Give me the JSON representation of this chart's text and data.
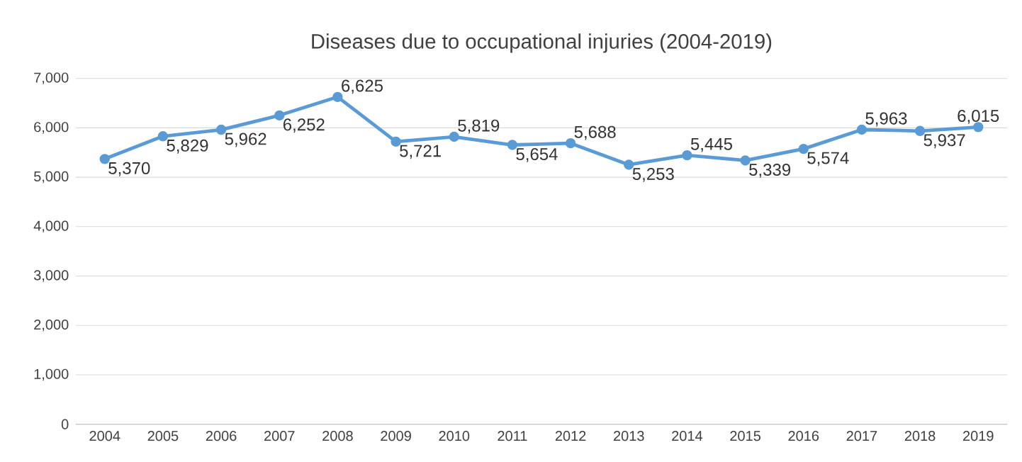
{
  "chart_data": {
    "type": "line",
    "title": "Diseases due to occupational injuries (2004-2019)",
    "categories": [
      "2004",
      "2005",
      "2006",
      "2007",
      "2008",
      "2009",
      "2010",
      "2011",
      "2012",
      "2013",
      "2014",
      "2015",
      "2016",
      "2017",
      "2018",
      "2019"
    ],
    "series": [
      {
        "color": "#5b9bd5",
        "values": [
          5370,
          5829,
          5962,
          6252,
          6625,
          5721,
          5819,
          5654,
          5688,
          5253,
          5445,
          5339,
          5574,
          5963,
          5937,
          6015
        ],
        "value_labels": [
          "5,370",
          "5,829",
          "5,962",
          "6,252",
          "6,625",
          "5,721",
          "5,819",
          "5,654",
          "5,688",
          "5,253",
          "5,445",
          "5,339",
          "5,574",
          "5,963",
          "5,937",
          "6,015"
        ]
      }
    ],
    "ylim": [
      0,
      7000
    ],
    "yticks": [
      0,
      {
        "value": 1000,
        "label": "1,000"
      },
      {
        "value": 2000,
        "label": "2,000"
      },
      {
        "value": 3000,
        "label": "3,000"
      },
      {
        "value": 4000,
        "label": "4,000"
      },
      {
        "value": 5000,
        "label": "5,000"
      },
      {
        "value": 6000,
        "label": "6,000"
      },
      {
        "value": 7000,
        "label": "7,000"
      }
    ],
    "grid": "y",
    "marker": "circle",
    "line_style": "solid",
    "legend": false
  }
}
